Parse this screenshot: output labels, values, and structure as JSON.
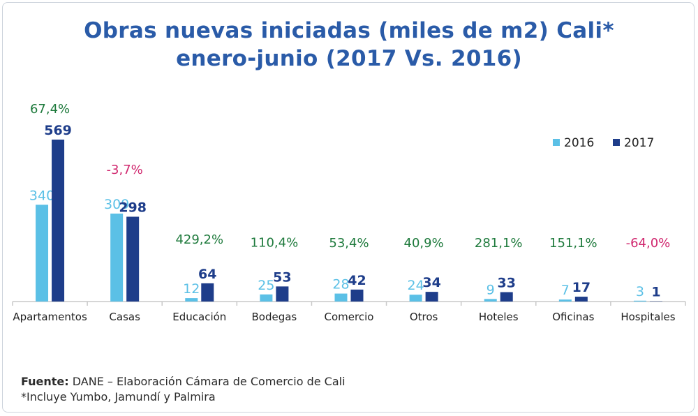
{
  "chart_data": {
    "type": "bar",
    "title_line1": "Obras nuevas iniciadas (miles  de m2) Cali*",
    "title_line2": "enero-junio (2017 Vs. 2016)",
    "categories": [
      "Apartamentos",
      "Casas",
      "Educación",
      "Bodegas",
      "Comercio",
      "Otros",
      "Hoteles",
      "Oficinas",
      "Hospitales"
    ],
    "series": [
      {
        "name": "2016",
        "color": "#5bc0e6",
        "values": [
          340,
          309,
          12,
          25,
          28,
          24,
          9,
          7,
          3
        ]
      },
      {
        "name": "2017",
        "color": "#1e3d8a",
        "values": [
          569,
          298,
          64,
          53,
          42,
          34,
          33,
          17,
          1
        ]
      }
    ],
    "changes": [
      "67,4%",
      "-3,7%",
      "429,2%",
      "110,4%",
      "53,4%",
      "40,9%",
      "281,1%",
      "151,1%",
      "-64,0%"
    ],
    "change_colors": {
      "positive": "#1e7a3c",
      "negative": "#d0276e"
    },
    "legend_position": "top-right",
    "ylim": [
      0,
      600
    ],
    "grid": false
  },
  "footer": {
    "source_label": "Fuente:",
    "source_text": " DANE – Elaboración Cámara de Comercio de Cali",
    "note": "*Incluye Yumbo, Jamundí y Palmira"
  }
}
